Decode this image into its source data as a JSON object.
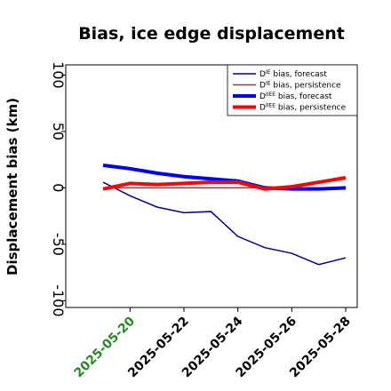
{
  "chart_data": {
    "type": "line",
    "title": "Bias, ice edge displacement",
    "y_label": "Displacement bias (km)",
    "x": [
      "2025-05-19",
      "2025-05-20",
      "2025-05-21",
      "2025-05-22",
      "2025-05-23",
      "2025-05-24",
      "2025-05-25",
      "2025-05-26",
      "2025-05-27",
      "2025-05-28"
    ],
    "xlim": [
      "2025-05-19",
      "2025-05-28"
    ],
    "xticks": [
      "2025-05-20",
      "2025-05-22",
      "2025-05-24",
      "2025-05-26",
      "2025-05-28"
    ],
    "xtick_label_colors": [
      "#228b22",
      "#000000",
      "#000000",
      "#000000",
      "#000000"
    ],
    "ylim": [
      -106,
      109
    ],
    "yticks": [
      -100,
      -50,
      0,
      50,
      100
    ],
    "legend": "upper right",
    "series": [
      {
        "name": "DIE bias, forecast",
        "color": "#00008b",
        "width": 1.5,
        "values": [
          5,
          -7,
          -17,
          -22,
          -21,
          -43,
          -53,
          -58,
          -68,
          -62
        ]
      },
      {
        "name": "DIE bias, persistence",
        "color": "#8b4040",
        "width": 1.5,
        "values": [
          0,
          0,
          0,
          0,
          0,
          0,
          0,
          0,
          0,
          0
        ]
      },
      {
        "name": "DIIEE bias, forecast",
        "color": "#0000ee",
        "width": 4,
        "values": [
          20,
          17,
          13,
          10,
          8,
          6,
          0,
          -1,
          -1,
          0
        ]
      },
      {
        "name": "DIIEE bias, persistence",
        "color": "#ff0000",
        "width": 4,
        "values": [
          -1,
          4,
          3,
          4,
          5,
          5,
          -1,
          1,
          5,
          9
        ]
      }
    ]
  }
}
